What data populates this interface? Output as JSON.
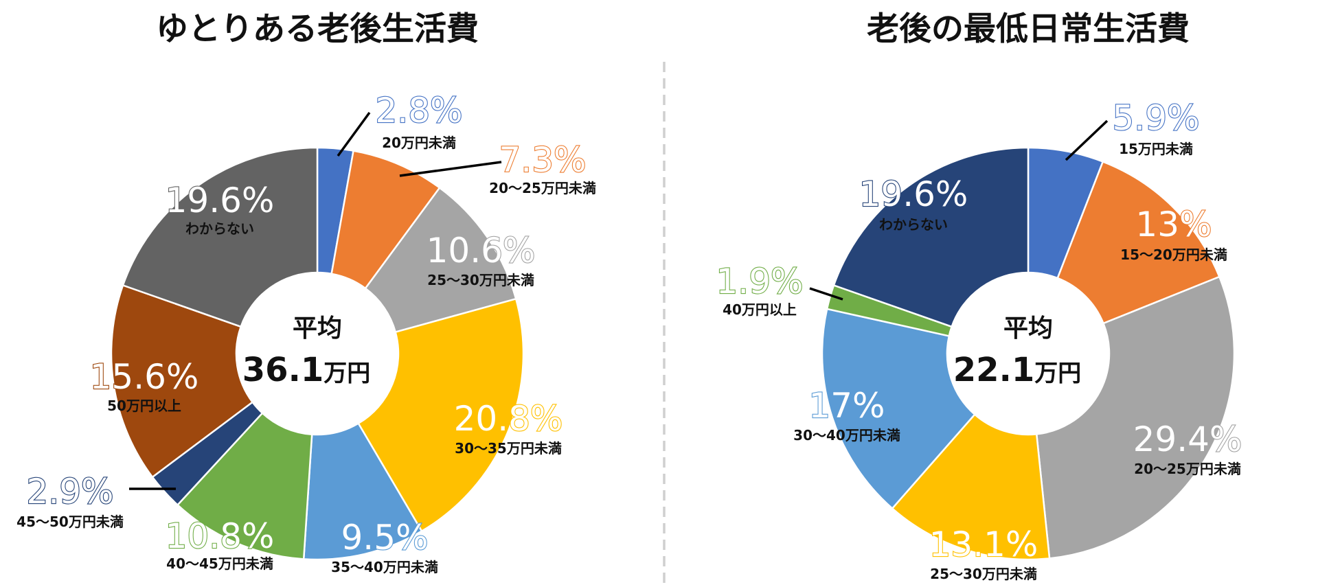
{
  "chart_data": [
    {
      "type": "donut",
      "title": "ゆとりある老後生活費",
      "center_label": "平均",
      "center_value": "36.1",
      "center_unit": "万円",
      "segments": [
        {
          "category": "20万円未満",
          "value": 2.8,
          "label": "2.8%",
          "color": "#4472c4"
        },
        {
          "category": "20～25万円未満",
          "value": 7.3,
          "label": "7.3%",
          "color": "#ed7d31"
        },
        {
          "category": "25～30万円未満",
          "value": 10.6,
          "label": "10.6%",
          "color": "#a5a5a5"
        },
        {
          "category": "30～35万円未満",
          "value": 20.8,
          "label": "20.8%",
          "color": "#ffc000"
        },
        {
          "category": "35～40万円未満",
          "value": 9.5,
          "label": "9.5%",
          "color": "#5b9bd5"
        },
        {
          "category": "40～45万円未満",
          "value": 10.8,
          "label": "10.8%",
          "color": "#70ad47"
        },
        {
          "category": "45～50万円未満",
          "value": 2.9,
          "label": "2.9%",
          "color": "#264478"
        },
        {
          "category": "50万円以上",
          "value": 15.6,
          "label": "15.6%",
          "color": "#9e480e"
        },
        {
          "category": "わからない",
          "value": 19.6,
          "label": "19.6%",
          "color": "#636363"
        }
      ]
    },
    {
      "type": "donut",
      "title": "老後の最低日常生活費",
      "center_label": "平均",
      "center_value": "22.1",
      "center_unit": "万円",
      "segments": [
        {
          "category": "15万円未満",
          "value": 5.9,
          "label": "5.9%",
          "color": "#4472c4"
        },
        {
          "category": "15～20万円未満",
          "value": 13,
          "label": "13%",
          "color": "#ed7d31"
        },
        {
          "category": "20～25万円未満",
          "value": 29.4,
          "label": "29.4%",
          "color": "#a5a5a5"
        },
        {
          "category": "25～30万円未満",
          "value": 13.1,
          "label": "13.1%",
          "color": "#ffc000"
        },
        {
          "category": "30～40万円未満",
          "value": 17,
          "label": "17%",
          "color": "#5b9bd5"
        },
        {
          "category": "40万円以上",
          "value": 1.9,
          "label": "1.9%",
          "color": "#70ad47"
        },
        {
          "category": "わからない",
          "value": 19.6,
          "label": "19.6%",
          "color": "#264478"
        }
      ]
    }
  ]
}
